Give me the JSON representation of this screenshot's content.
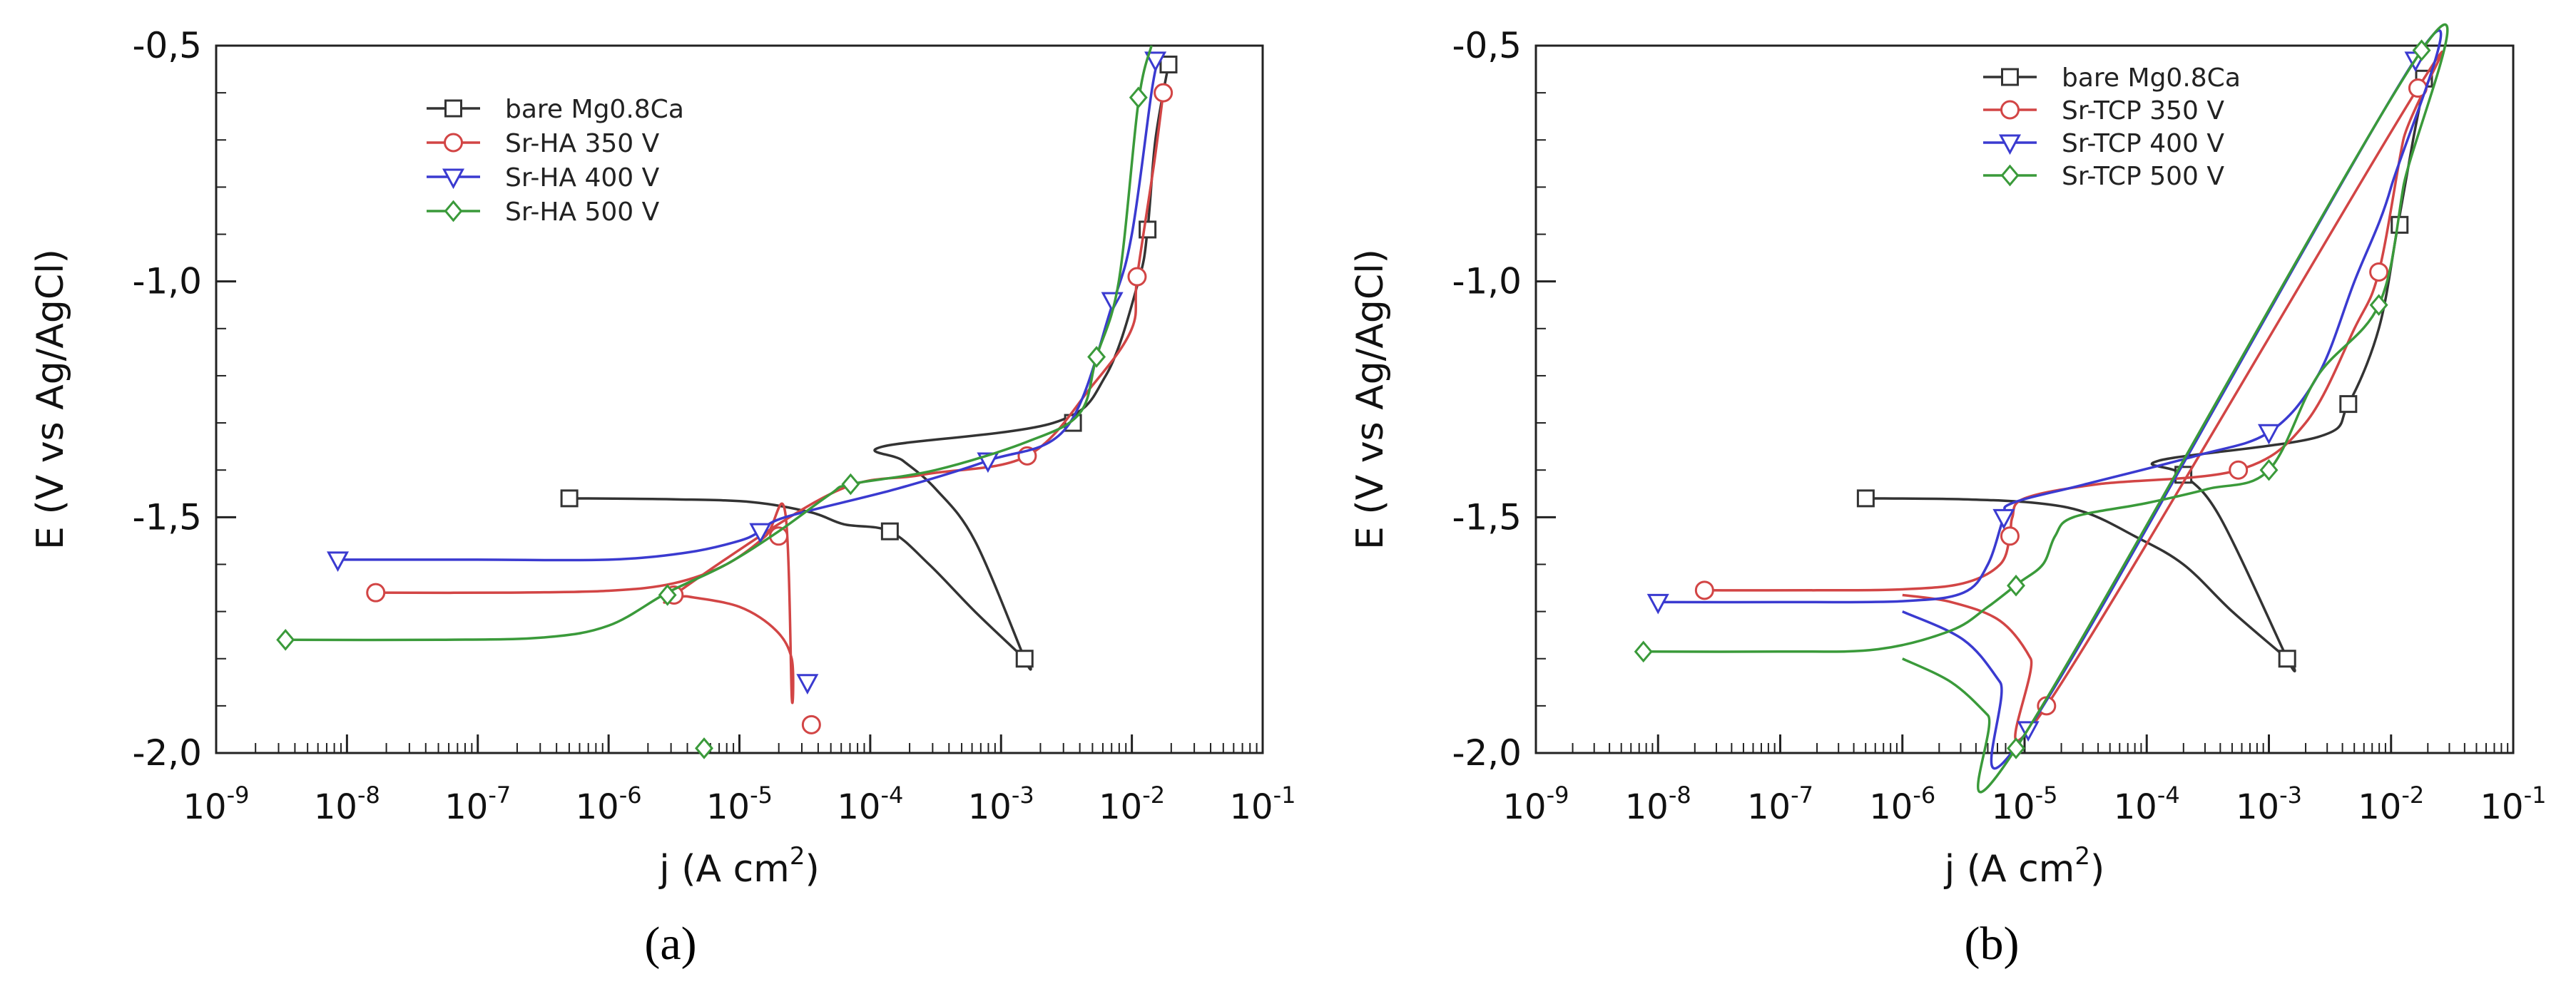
{
  "figure": {
    "panel_a_label": "(a)",
    "panel_b_label": "(b)"
  },
  "chart_data": [
    {
      "type": "line",
      "panel": "(a)",
      "xscale": "log",
      "xlabel": "j (A cm",
      "xlabel_sup": "2",
      "xlabel_close": ")",
      "ylabel": "E (V vs Ag/AgCl)",
      "xlim_exp": [
        -9,
        -1
      ],
      "ylim": [
        -2.0,
        -0.5
      ],
      "xticks": [
        {
          "base": "10",
          "exp": "-9"
        },
        {
          "base": "10",
          "exp": "-8"
        },
        {
          "base": "10",
          "exp": "-7"
        },
        {
          "base": "10",
          "exp": "-6"
        },
        {
          "base": "10",
          "exp": "-5"
        },
        {
          "base": "10",
          "exp": "-4"
        },
        {
          "base": "10",
          "exp": "-3"
        },
        {
          "base": "10",
          "exp": "-2"
        },
        {
          "base": "10",
          "exp": "-1"
        }
      ],
      "yticks": [
        {
          "value": -0.5,
          "label": "-0,5"
        },
        {
          "value": -1.0,
          "label": "-1,0"
        },
        {
          "value": -1.5,
          "label": "-1,5"
        },
        {
          "value": -2.0,
          "label": "-2,0"
        }
      ],
      "legend_position": "top-left",
      "series": [
        {
          "name": "bare Mg0.8Ca",
          "color": "#333333",
          "marker": "square",
          "points": [
            [
              -6.3,
              -1.46
            ],
            [
              -5.5,
              -1.462
            ],
            [
              -4.9,
              -1.468
            ],
            [
              -4.45,
              -1.49
            ],
            [
              -4.2,
              -1.515
            ],
            [
              -3.85,
              -1.53
            ],
            [
              -3.55,
              -1.6
            ],
            [
              -3.2,
              -1.7
            ],
            [
              -2.82,
              -1.8
            ],
            [
              -2.82,
              -1.8
            ],
            [
              -3.2,
              -1.55
            ],
            [
              -3.5,
              -1.44
            ],
            [
              -3.75,
              -1.38
            ],
            [
              -3.9,
              -1.35
            ],
            [
              -2.6,
              -1.3
            ],
            [
              -2.2,
              -1.2
            ],
            [
              -1.95,
              -1.0
            ],
            [
              -1.88,
              -0.89
            ],
            [
              -1.82,
              -0.7
            ],
            [
              -1.72,
              -0.54
            ]
          ],
          "markers": [
            [
              -6.3,
              -1.46
            ],
            [
              -3.85,
              -1.53
            ],
            [
              -2.82,
              -1.8
            ],
            [
              -2.45,
              -1.3
            ],
            [
              -1.88,
              -0.89
            ],
            [
              -1.72,
              -0.54
            ]
          ]
        },
        {
          "name": "Sr-HA 350 V",
          "color": "#d24545",
          "marker": "circle",
          "points": [
            [
              -7.78,
              -1.66
            ],
            [
              -6.8,
              -1.66
            ],
            [
              -6.0,
              -1.656
            ],
            [
              -5.5,
              -1.64
            ],
            [
              -5.1,
              -1.6
            ],
            [
              -4.8,
              -1.54
            ],
            [
              -4.65,
              -1.49
            ],
            [
              -4.6,
              -1.88
            ],
            [
              -4.6,
              -1.8
            ],
            [
              -4.72,
              -1.74
            ],
            [
              -5.0,
              -1.69
            ],
            [
              -5.4,
              -1.668
            ],
            [
              -5.5,
              -1.665
            ],
            [
              -4.3,
              -1.45
            ],
            [
              -3.6,
              -1.41
            ],
            [
              -2.8,
              -1.37
            ],
            [
              -2.3,
              -1.22
            ],
            [
              -2.0,
              -1.1
            ],
            [
              -1.96,
              -0.99
            ],
            [
              -1.83,
              -0.75
            ],
            [
              -1.76,
              -0.6
            ]
          ],
          "markers": [
            [
              -7.78,
              -1.66
            ],
            [
              -4.7,
              -1.54
            ],
            [
              -4.45,
              -1.94
            ],
            [
              -5.5,
              -1.665
            ],
            [
              -2.8,
              -1.37
            ],
            [
              -1.96,
              -0.99
            ],
            [
              -1.76,
              -0.6
            ]
          ]
        },
        {
          "name": "Sr-HA 400 V",
          "color": "#3a3ad0",
          "marker": "triangle-down",
          "points": [
            [
              -8.07,
              -1.59
            ],
            [
              -7.0,
              -1.59
            ],
            [
              -6.0,
              -1.59
            ],
            [
              -5.4,
              -1.575
            ],
            [
              -5.0,
              -1.55
            ],
            [
              -4.84,
              -1.53
            ],
            [
              -4.65,
              -1.5
            ],
            [
              -3.8,
              -1.44
            ],
            [
              -3.1,
              -1.38
            ],
            [
              -2.5,
              -1.31
            ],
            [
              -2.15,
              -1.05
            ],
            [
              -2.0,
              -0.9
            ],
            [
              -1.85,
              -0.6
            ],
            [
              -1.8,
              -0.53
            ]
          ],
          "markers": [
            [
              -8.07,
              -1.59
            ],
            [
              -4.84,
              -1.53
            ],
            [
              -4.48,
              -1.85
            ],
            [
              -3.1,
              -1.38
            ],
            [
              -2.15,
              -1.04
            ],
            [
              -1.82,
              -0.53
            ]
          ]
        },
        {
          "name": "Sr-HA 500 V",
          "color": "#3a9a3a",
          "marker": "diamond",
          "points": [
            [
              -8.47,
              -1.76
            ],
            [
              -7.3,
              -1.76
            ],
            [
              -6.5,
              -1.755
            ],
            [
              -6.0,
              -1.73
            ],
            [
              -5.55,
              -1.66
            ],
            [
              -5.1,
              -1.6
            ],
            [
              -4.7,
              -1.53
            ],
            [
              -4.3,
              -1.45
            ],
            [
              -4.15,
              -1.43
            ],
            [
              -3.5,
              -1.4
            ],
            [
              -2.8,
              -1.34
            ],
            [
              -2.4,
              -1.28
            ],
            [
              -2.27,
              -1.16
            ],
            [
              -2.1,
              -1.0
            ],
            [
              -1.95,
              -0.62
            ],
            [
              -1.85,
              -0.5
            ]
          ],
          "markers": [
            [
              -8.47,
              -1.76
            ],
            [
              -5.55,
              -1.665
            ],
            [
              -5.27,
              -1.99
            ],
            [
              -4.15,
              -1.43
            ],
            [
              -2.27,
              -1.16
            ],
            [
              -1.95,
              -0.61
            ]
          ]
        }
      ]
    },
    {
      "type": "line",
      "panel": "(b)",
      "xscale": "log",
      "xlabel": "j (A cm",
      "xlabel_sup": "2",
      "xlabel_close": ")",
      "ylabel": "E (V vs Ag/AgCl)",
      "xlim_exp": [
        -9,
        -1
      ],
      "ylim": [
        -2.0,
        -0.5
      ],
      "xticks": [
        {
          "base": "10",
          "exp": "-9"
        },
        {
          "base": "10",
          "exp": "-8"
        },
        {
          "base": "10",
          "exp": "-7"
        },
        {
          "base": "10",
          "exp": "-6"
        },
        {
          "base": "10",
          "exp": "-5"
        },
        {
          "base": "10",
          "exp": "-4"
        },
        {
          "base": "10",
          "exp": "-3"
        },
        {
          "base": "10",
          "exp": "-2"
        },
        {
          "base": "10",
          "exp": "-1"
        }
      ],
      "yticks": [
        {
          "value": -0.5,
          "label": "-0,5"
        },
        {
          "value": -1.0,
          "label": "-1,0"
        },
        {
          "value": -1.5,
          "label": "-1,5"
        },
        {
          "value": -2.0,
          "label": "-2,0"
        }
      ],
      "legend_position": "top-center",
      "series": [
        {
          "name": "bare Mg0.8Ca",
          "color": "#333333",
          "marker": "square",
          "points": [
            [
              -6.3,
              -1.46
            ],
            [
              -5.5,
              -1.462
            ],
            [
              -4.9,
              -1.47
            ],
            [
              -4.5,
              -1.49
            ],
            [
              -4.1,
              -1.54
            ],
            [
              -3.7,
              -1.6
            ],
            [
              -3.3,
              -1.7
            ],
            [
              -2.85,
              -1.8
            ],
            [
              -2.85,
              -1.8
            ],
            [
              -3.4,
              -1.5
            ],
            [
              -3.7,
              -1.41
            ],
            [
              -3.9,
              -1.38
            ],
            [
              -2.6,
              -1.33
            ],
            [
              -2.35,
              -1.26
            ],
            [
              -2.1,
              -1.1
            ],
            [
              -1.95,
              -0.89
            ],
            [
              -1.82,
              -0.7
            ],
            [
              -1.72,
              -0.57
            ]
          ],
          "markers": [
            [
              -6.3,
              -1.46
            ],
            [
              -2.85,
              -1.8
            ],
            [
              -3.7,
              -1.41
            ],
            [
              -2.35,
              -1.26
            ],
            [
              -1.93,
              -0.88
            ],
            [
              -1.73,
              -0.57
            ]
          ]
        },
        {
          "name": "Sr-TCP 350 V",
          "color": "#d24545",
          "marker": "circle",
          "points": [
            [
              -7.62,
              -1.655
            ],
            [
              -6.7,
              -1.655
            ],
            [
              -6.0,
              -1.653
            ],
            [
              -5.5,
              -1.64
            ],
            [
              -5.2,
              -1.6
            ],
            [
              -5.12,
              -1.54
            ],
            [
              -5.1,
              -1.5
            ],
            [
              -5.0,
              -1.46
            ],
            [
              -4.4,
              -1.43
            ],
            [
              -3.25,
              -1.4
            ],
            [
              -2.7,
              -1.3
            ],
            [
              -2.3,
              -1.1
            ],
            [
              -2.1,
              -0.98
            ],
            [
              -1.9,
              -0.7
            ],
            [
              -1.78,
              -0.59
            ],
            [
              -4.82,
              -1.9
            ],
            [
              -4.95,
              -1.8
            ],
            [
              -5.2,
              -1.72
            ],
            [
              -5.6,
              -1.68
            ],
            [
              -6.0,
              -1.665
            ]
          ],
          "markers": [
            [
              -7.62,
              -1.655
            ],
            [
              -5.12,
              -1.54
            ],
            [
              -4.82,
              -1.9
            ],
            [
              -3.25,
              -1.4
            ],
            [
              -2.1,
              -0.98
            ],
            [
              -1.78,
              -0.59
            ]
          ]
        },
        {
          "name": "Sr-TCP 400 V",
          "color": "#3a3ad0",
          "marker": "triangle-down",
          "points": [
            [
              -8.0,
              -1.68
            ],
            [
              -7.0,
              -1.68
            ],
            [
              -6.0,
              -1.678
            ],
            [
              -5.5,
              -1.66
            ],
            [
              -5.3,
              -1.6
            ],
            [
              -5.17,
              -1.5
            ],
            [
              -5.1,
              -1.47
            ],
            [
              -4.5,
              -1.43
            ],
            [
              -3.6,
              -1.37
            ],
            [
              -3.0,
              -1.32
            ],
            [
              -2.6,
              -1.2
            ],
            [
              -2.3,
              -1.0
            ],
            [
              -2.0,
              -0.8
            ],
            [
              -1.78,
              -0.52
            ],
            [
              -4.97,
              -1.95
            ],
            [
              -5.2,
              -1.85
            ],
            [
              -5.5,
              -1.76
            ],
            [
              -6.0,
              -1.7
            ]
          ],
          "markers": [
            [
              -8.0,
              -1.68
            ],
            [
              -5.17,
              -1.5
            ],
            [
              -4.97,
              -1.95
            ],
            [
              -3.0,
              -1.32
            ],
            [
              -1.8,
              -0.53
            ]
          ]
        },
        {
          "name": "Sr-TCP 500 V",
          "color": "#3a9a3a",
          "marker": "diamond",
          "points": [
            [
              -8.12,
              -1.785
            ],
            [
              -7.0,
              -1.785
            ],
            [
              -6.2,
              -1.78
            ],
            [
              -5.6,
              -1.74
            ],
            [
              -5.3,
              -1.69
            ],
            [
              -5.05,
              -1.64
            ],
            [
              -4.85,
              -1.6
            ],
            [
              -4.75,
              -1.54
            ],
            [
              -4.6,
              -1.5
            ],
            [
              -4.0,
              -1.47
            ],
            [
              -3.5,
              -1.44
            ],
            [
              -3.0,
              -1.4
            ],
            [
              -2.6,
              -1.2
            ],
            [
              -2.1,
              -1.05
            ],
            [
              -1.9,
              -0.8
            ],
            [
              -1.75,
              -0.51
            ],
            [
              -5.07,
              -1.99
            ],
            [
              -5.3,
              -1.92
            ],
            [
              -5.6,
              -1.85
            ],
            [
              -6.0,
              -1.8
            ]
          ],
          "markers": [
            [
              -8.12,
              -1.785
            ],
            [
              -5.07,
              -1.645
            ],
            [
              -5.07,
              -1.99
            ],
            [
              -3.0,
              -1.4
            ],
            [
              -2.1,
              -1.05
            ],
            [
              -1.75,
              -0.51
            ]
          ]
        }
      ]
    }
  ]
}
